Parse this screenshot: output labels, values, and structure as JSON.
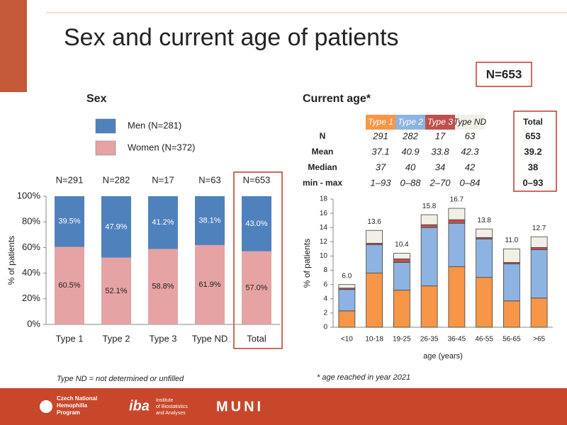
{
  "slide": {
    "title": "Sex and current age of patients",
    "n_badge": "N=653",
    "sex_heading": "Sex",
    "age_heading": "Current age*",
    "footnote_left": "Type ND = not determined or unfilled",
    "footnote_right": "* age reached in year 2021",
    "logos": [
      "Czech National",
      "Hemophilia",
      "Program",
      "iba",
      "Institute",
      "of Biostatistics",
      "and Analyses",
      "MUNI"
    ]
  },
  "table": {
    "total_header": "Total",
    "rows": [
      {
        "label": "N",
        "values": [
          291,
          282,
          17,
          63,
          653
        ]
      },
      {
        "label": "Mean",
        "values": [
          37.1,
          40.9,
          33.8,
          42.3,
          39.2
        ]
      },
      {
        "label": "Median",
        "values": [
          37,
          40,
          34,
          42,
          38
        ]
      },
      {
        "label": "min - max",
        "values": [
          "1–93",
          "0–88",
          "2–70",
          "0–84",
          "0–93"
        ]
      }
    ]
  },
  "chart_data": [
    {
      "type": "stacked_bar",
      "y_label": "% of patients",
      "categories": [
        "Type 1",
        "Type 2",
        "Type 3",
        "Type ND",
        "Total"
      ],
      "annotations": [
        "N=291",
        "N=282",
        "N=17",
        "N=63",
        "N=653"
      ],
      "series": [
        {
          "name": "Women (N=372)",
          "color": "#e6a3a3",
          "values": [
            60.5,
            52.1,
            58.8,
            61.9,
            57.0
          ],
          "value_labels": [
            "60.5%",
            "52.1%",
            "58.8%",
            "61.9%",
            "57.0%"
          ]
        },
        {
          "name": "Men (N=281)",
          "color": "#4f81bd",
          "values": [
            39.5,
            47.9,
            41.2,
            38.1,
            43.0
          ],
          "value_labels": [
            "39.5%",
            "47.9%",
            "41.2%",
            "38.1%",
            "43.0%"
          ]
        }
      ],
      "ylim": [
        0,
        100
      ],
      "yticks": [
        {
          "value": 0,
          "label": "0%"
        },
        {
          "value": 20,
          "label": "20%"
        },
        {
          "value": 40,
          "label": "40%"
        },
        {
          "value": 60,
          "label": "60%"
        },
        {
          "value": 80,
          "label": "80%"
        },
        {
          "value": 100,
          "label": "100%"
        }
      ],
      "grid": false,
      "legend": true
    },
    {
      "type": "stacked_bar",
      "y_label": "% of patients",
      "x_label": "age (years)",
      "categories": [
        "<10",
        "10-18",
        "19-25",
        "26-35",
        "36-45",
        "46-55",
        "56-65",
        ">65"
      ],
      "series": [
        {
          "name": "Type 1",
          "color": "#f79646",
          "values": [
            2.3,
            7.6,
            5.2,
            5.8,
            8.5,
            7.0,
            3.7,
            4.1
          ]
        },
        {
          "name": "Type 2",
          "color": "#8db3e2",
          "values": [
            3.0,
            4.0,
            3.9,
            8.2,
            6.1,
            5.4,
            5.2,
            6.8
          ]
        },
        {
          "name": "Type 3",
          "color": "#c0504d",
          "values": [
            0.2,
            0.2,
            0.5,
            0.4,
            0.5,
            0.2,
            0.2,
            0.3
          ]
        },
        {
          "name": "Type ND",
          "color": "#f2f0e6",
          "values": [
            0.5,
            1.8,
            0.8,
            1.4,
            1.6,
            1.2,
            1.9,
            1.5
          ]
        }
      ],
      "totals": {
        "values": [
          6.0,
          13.6,
          10.4,
          15.8,
          16.7,
          13.8,
          11.0,
          12.7
        ],
        "value_labels": [
          "6.0",
          "13.6",
          "10.4",
          "15.8",
          "16.7",
          "13.8",
          "11.0",
          "12.7"
        ]
      },
      "ylim": [
        0,
        18
      ],
      "yticks": [
        0,
        2,
        4,
        6,
        8,
        10,
        12,
        14,
        16,
        18
      ],
      "grid": false,
      "legend": false
    }
  ]
}
